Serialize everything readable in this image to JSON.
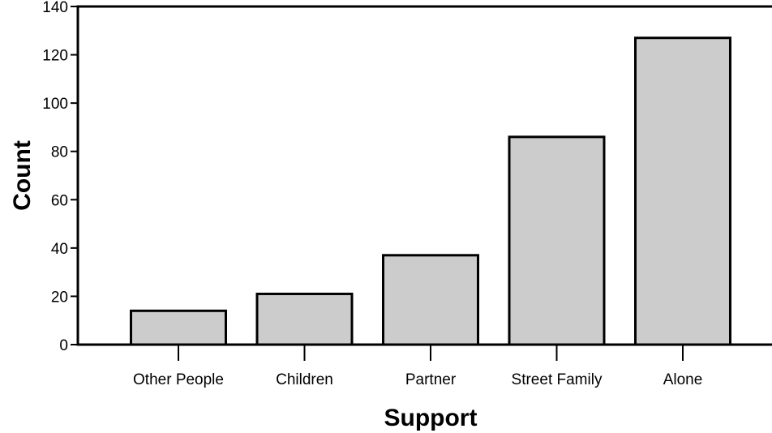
{
  "chart_data": {
    "type": "bar",
    "title": "",
    "xlabel": "Support",
    "ylabel": "Count",
    "categories": [
      "Other People",
      "Children",
      "Partner",
      "Street Family",
      "Alone"
    ],
    "values": [
      14,
      21,
      37,
      86,
      127
    ],
    "ylim": [
      0,
      140
    ],
    "yticks": [
      0,
      20,
      40,
      60,
      80,
      100,
      120,
      140
    ],
    "grid": false,
    "legend": "none",
    "bar_color": "#cccccc",
    "bar_edge_color": "#000000"
  }
}
